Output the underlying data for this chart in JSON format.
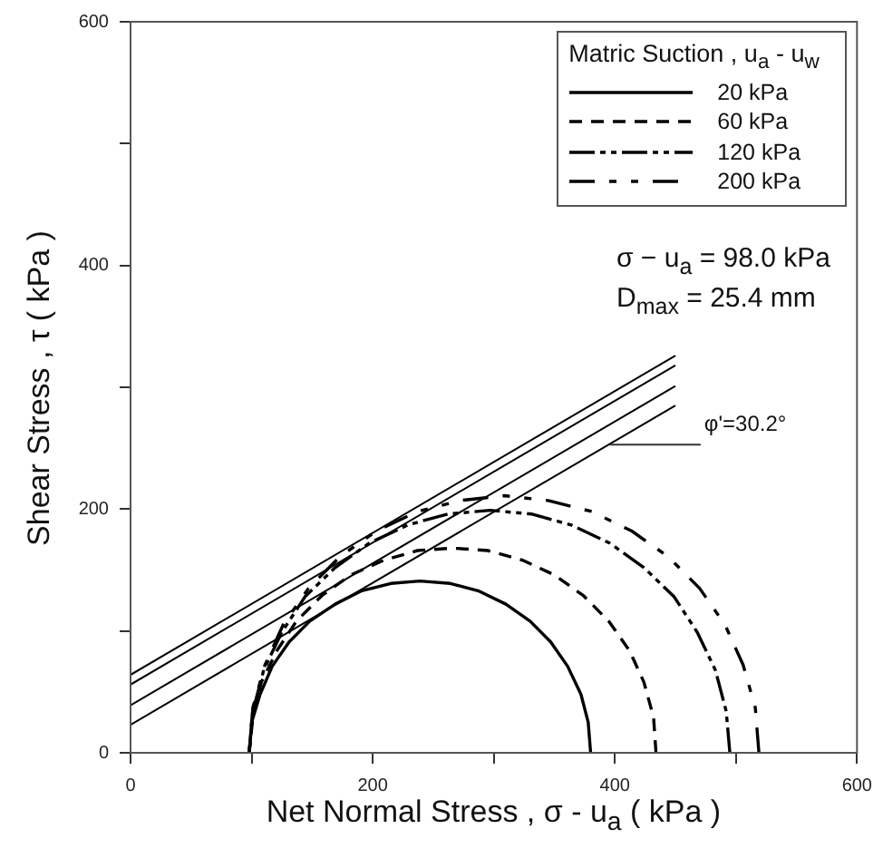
{
  "chart_data": {
    "type": "line",
    "xlabel": "Net Normal Stress , σ - u$_{a}$ ( kPa )",
    "ylabel": "Shear Stress , τ ( kPa )",
    "legend_title": "Matric Suction , u$_{a}$ - u$_{w}$",
    "legend": "top right",
    "marker": "none",
    "grid": false,
    "xlim": [
      0,
      600
    ],
    "xticks": [
      0,
      {
        "value": 100,
        "label": null
      },
      200,
      {
        "value": 300,
        "label": null
      },
      400,
      {
        "value": 500,
        "label": null
      },
      600
    ],
    "ylim": [
      0,
      600
    ],
    "yticks": [
      0,
      {
        "value": 100,
        "label": null
      },
      200,
      {
        "value": 300,
        "label": null
      },
      400,
      {
        "value": 500,
        "label": null
      },
      600
    ],
    "annotations": [
      "σ − u$_{a}$ = 98.0 kPa",
      "D$_{max}$ = 25.4 mm",
      {
        "text": "φ'=30.2°",
        "x": 396,
        "y": 253
      }
    ],
    "series": [
      {
        "name": "20 kPa",
        "color": "#000000",
        "line_style": "solid",
        "x": [
          380,
          378,
          372,
          361,
          347,
          330,
          310,
          287,
          264,
          239,
          215,
          191,
          169,
          148,
          131,
          117,
          107,
          100,
          98
        ],
        "values": [
          0,
          25,
          48,
          71,
          91,
          108,
          122,
          133,
          139,
          141,
          139,
          133,
          122,
          108,
          91,
          71,
          48,
          25,
          0
        ]
      },
      {
        "name": "60 kPa",
        "color": "#000000",
        "line_style": "dashed",
        "x": [
          434,
          432,
          424,
          412,
          395,
          374,
          350,
          324,
          295,
          266,
          237,
          209,
          182,
          158,
          137,
          121,
          108,
          101,
          98
        ],
        "values": [
          0,
          29,
          58,
          84,
          108,
          129,
          146,
          158,
          166,
          168,
          166,
          158,
          146,
          129,
          108,
          84,
          58,
          29,
          0
        ]
      },
      {
        "name": "120 kPa",
        "color": "#000000",
        "line_style": "dashdot",
        "x": [
          495,
          492,
          483,
          468,
          449,
          424,
          396,
          364,
          331,
          297,
          262,
          229,
          197,
          169,
          144,
          125,
          110,
          101,
          98
        ],
        "values": [
          0,
          34,
          68,
          99,
          128,
          152,
          172,
          187,
          196,
          199,
          196,
          187,
          172,
          152,
          128,
          99,
          68,
          34,
          0
        ]
      },
      {
        "name": "200 kPa",
        "color": "#000000",
        "line_style": "longdash-shortdash",
        "x": [
          519,
          516,
          506,
          491,
          470,
          444,
          414,
          381,
          345,
          309,
          272,
          237,
          203,
          173,
          147,
          126,
          111,
          101,
          98
        ],
        "values": [
          0,
          37,
          72,
          105,
          135,
          161,
          182,
          198,
          207,
          211,
          207,
          198,
          182,
          161,
          135,
          105,
          72,
          37,
          0
        ]
      },
      {
        "color": "#000000",
        "line_style": "solid",
        "x": [
          0,
          450
        ],
        "values": [
          23,
          285
        ]
      },
      {
        "color": "#000000",
        "line_style": "solid",
        "x": [
          0,
          450
        ],
        "values": [
          39,
          301
        ]
      },
      {
        "color": "#000000",
        "line_style": "solid",
        "x": [
          0,
          450
        ],
        "values": [
          56,
          318
        ]
      },
      {
        "color": "#000000",
        "line_style": "solid",
        "x": [
          0,
          450
        ],
        "values": [
          64,
          326
        ]
      }
    ]
  }
}
